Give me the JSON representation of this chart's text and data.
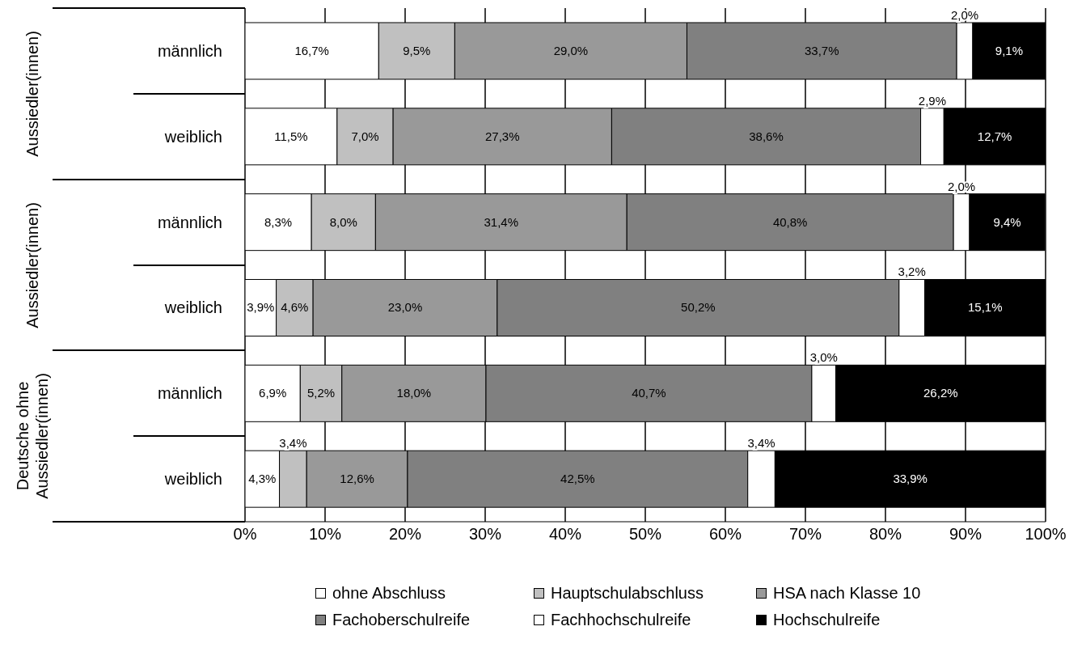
{
  "chart_data": {
    "type": "bar",
    "orientation": "horizontal",
    "stacked": true,
    "categories": [
      "männlich",
      "weiblich",
      "männlich",
      "weiblich",
      "männlich",
      "weiblich"
    ],
    "annotations": [
      "Aussiedler(innen)",
      "Aussiedler(innen)",
      "Deutsche ohne Aussiedler(innen)"
    ],
    "series": [
      {
        "name": "ohne Abschluss",
        "color": "#ffffff",
        "values": [
          16.7,
          11.5,
          8.3,
          3.9,
          6.9,
          4.3
        ],
        "value_labels": [
          "16,7%",
          "11,5%",
          "8,3%",
          "3,9%",
          "6,9%",
          "4,3%"
        ]
      },
      {
        "name": "Hauptschulabschluss",
        "color": "#c0c0c0",
        "values": [
          9.5,
          7.0,
          8.0,
          4.6,
          5.2,
          3.4
        ],
        "value_labels": [
          "9,5%",
          "7,0%",
          "8,0%",
          "4,6%",
          "5,2%",
          "3,4%"
        ]
      },
      {
        "name": "HSA nach Klasse 10",
        "color": "#999999",
        "values": [
          29.0,
          27.3,
          31.4,
          23.0,
          18.0,
          12.6
        ],
        "value_labels": [
          "29,0%",
          "27,3%",
          "31,4%",
          "23,0%",
          "18,0%",
          "12,6%"
        ]
      },
      {
        "name": "Fachoberschulreife",
        "color": "#808080",
        "values": [
          33.7,
          38.6,
          40.8,
          50.2,
          40.7,
          42.5
        ],
        "value_labels": [
          "33,7%",
          "38,6%",
          "40,8%",
          "50,2%",
          "40,7%",
          "42,5%"
        ]
      },
      {
        "name": "Fachhochschulreife",
        "color": "#ffffff",
        "values": [
          2.0,
          2.9,
          2.0,
          3.2,
          3.0,
          3.4
        ],
        "value_labels": [
          "2,0%",
          "2,9%",
          "2,0%",
          "3,2%",
          "3,0%",
          "3,4%"
        ]
      },
      {
        "name": "Hochschulreife",
        "color": "#000000",
        "values": [
          9.1,
          12.7,
          9.4,
          15.1,
          26.2,
          33.9
        ],
        "value_labels": [
          "9,1%",
          "12,7%",
          "9,4%",
          "15,1%",
          "26,2%",
          "33,9%"
        ]
      }
    ],
    "xlim": [
      0,
      100
    ],
    "xticks": [
      {
        "value": 0,
        "label": "0%"
      },
      {
        "value": 10,
        "label": "10%"
      },
      {
        "value": 20,
        "label": "20%"
      },
      {
        "value": 30,
        "label": "30%"
      },
      {
        "value": 40,
        "label": "40%"
      },
      {
        "value": 50,
        "label": "50%"
      },
      {
        "value": 60,
        "label": "60%"
      },
      {
        "value": 70,
        "label": "70%"
      },
      {
        "value": 80,
        "label": "80%"
      },
      {
        "value": 90,
        "label": "90%"
      },
      {
        "value": 100,
        "label": "100%"
      }
    ],
    "grid": "x",
    "legend": "bottom"
  }
}
